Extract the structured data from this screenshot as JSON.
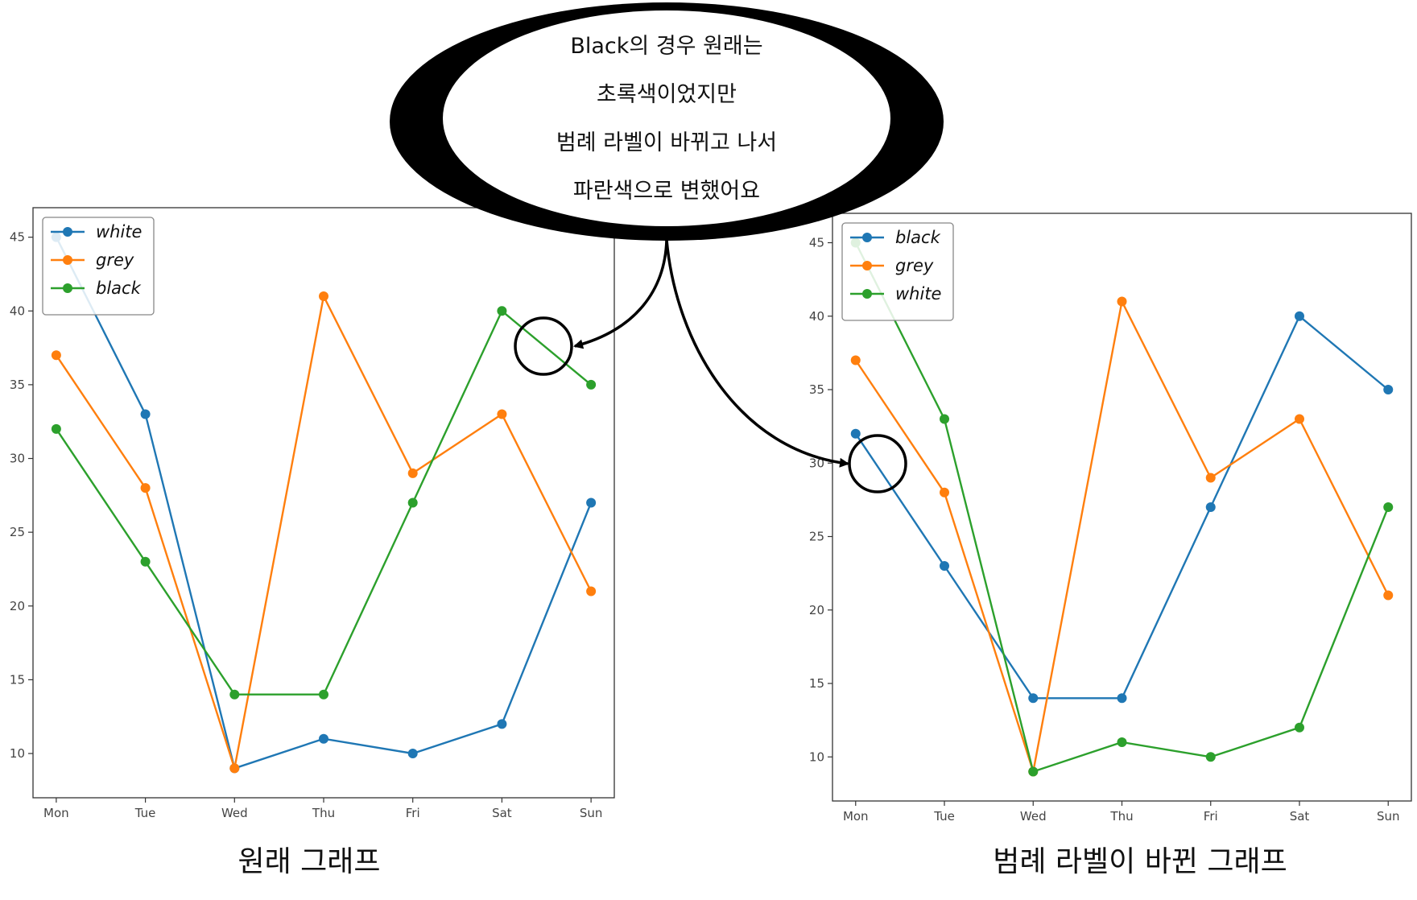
{
  "callout": {
    "lines": [
      "Black의 경우 원래는",
      "초록색이었지만",
      "범례 라벨이 바뀌고 나서",
      "파란색으로 변했어요"
    ]
  },
  "colors": {
    "series_1": "#1f77b4",
    "series_2": "#ff7f0e",
    "series_3": "#2ca02c"
  },
  "chart_data": [
    {
      "type": "line",
      "caption": "원래 그래프",
      "categories": [
        "Mon",
        "Tue",
        "Wed",
        "Thu",
        "Fri",
        "Sat",
        "Sun"
      ],
      "ylim": [
        7,
        47
      ],
      "yticks": [
        10,
        15,
        20,
        25,
        30,
        35,
        40,
        45
      ],
      "legend_position": "top-left",
      "grid": false,
      "series": [
        {
          "name": "white",
          "values": [
            45,
            33,
            9,
            11,
            10,
            12,
            27
          ]
        },
        {
          "name": "grey",
          "values": [
            37,
            28,
            9,
            41,
            29,
            33,
            21
          ]
        },
        {
          "name": "black",
          "values": [
            32,
            23,
            14,
            14,
            27,
            40,
            35
          ]
        }
      ]
    },
    {
      "type": "line",
      "caption": "범례 라벨이 바뀐 그래프",
      "categories": [
        "Mon",
        "Tue",
        "Wed",
        "Thu",
        "Fri",
        "Sat",
        "Sun"
      ],
      "ylim": [
        7,
        47
      ],
      "yticks": [
        10,
        15,
        20,
        25,
        30,
        35,
        40,
        45
      ],
      "legend_position": "top-left",
      "grid": false,
      "series": [
        {
          "name": "black",
          "values": [
            32,
            23,
            14,
            14,
            27,
            40,
            35
          ]
        },
        {
          "name": "grey",
          "values": [
            37,
            28,
            9,
            41,
            29,
            33,
            21
          ]
        },
        {
          "name": "white",
          "values": [
            45,
            33,
            9,
            11,
            10,
            12,
            27
          ]
        }
      ]
    }
  ]
}
